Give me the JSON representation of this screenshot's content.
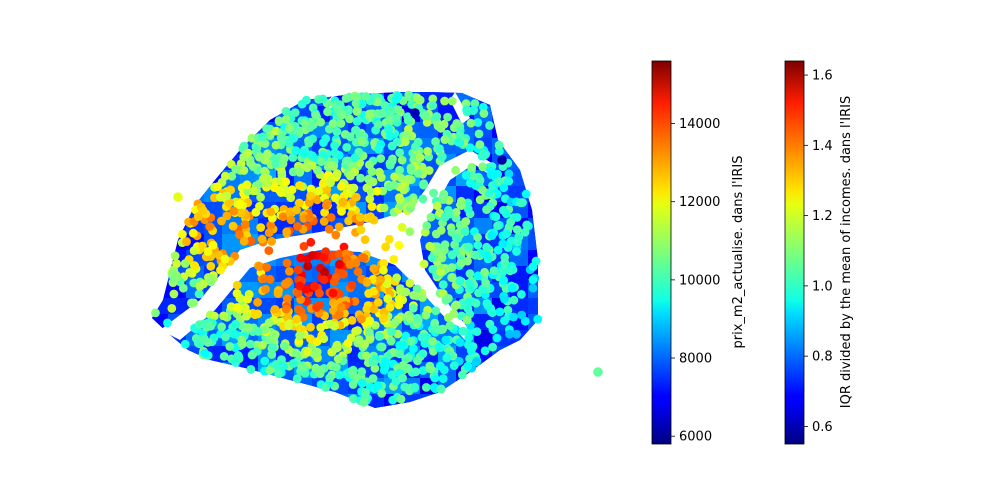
{
  "chart_data": {
    "type": "scatter",
    "title": "",
    "xlabel": "",
    "ylabel": "",
    "axes_visible": false,
    "background_layer": {
      "type": "choropleth",
      "colormap": "jet",
      "colorbar": {
        "label": "IQR divided by the mean of incomes. dans l'IRIS",
        "range": [
          0.55,
          1.64
        ],
        "ticks": [
          "0.6",
          "0.8",
          "1.0",
          "1.2",
          "1.4",
          "1.6"
        ],
        "tick_values": [
          0.6,
          0.8,
          1.0,
          1.2,
          1.4,
          1.6
        ]
      }
    },
    "points_layer": {
      "type": "scatter",
      "colormap": "jet",
      "colorbar": {
        "label": "prix_m2_actualise. dans l'IRIS",
        "range": [
          5800,
          15600
        ],
        "ticks": [
          "6000",
          "8000",
          "10000",
          "12000",
          "14000"
        ],
        "tick_values": [
          6000,
          8000,
          10000,
          12000,
          14000
        ]
      }
    }
  }
}
